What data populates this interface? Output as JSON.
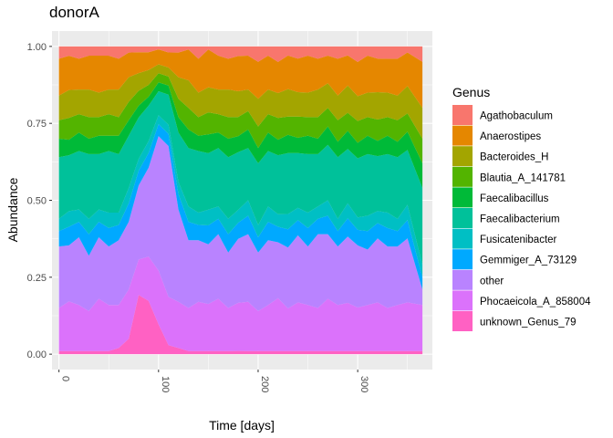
{
  "chart_data": {
    "type": "area",
    "title": "donorA",
    "xlabel": "Time [days]",
    "ylabel": "Abundance",
    "xlim": [
      0,
      365
    ],
    "ylim": [
      0,
      1
    ],
    "x_ticks": [
      "0",
      "100",
      "200",
      "300"
    ],
    "y_ticks": [
      "0.00",
      "0.25",
      "0.50",
      "0.75",
      "1.00"
    ],
    "grid": true,
    "legend": {
      "title": "Genus",
      "position": "right"
    },
    "x": [
      0,
      10,
      20,
      30,
      40,
      50,
      60,
      70,
      80,
      90,
      100,
      110,
      120,
      130,
      140,
      150,
      160,
      170,
      180,
      190,
      200,
      210,
      220,
      230,
      240,
      250,
      260,
      270,
      280,
      290,
      300,
      310,
      320,
      330,
      340,
      350,
      365
    ],
    "series": [
      {
        "name": "unknown_Genus_79",
        "color": "#FF61C3",
        "values": [
          0.01,
          0.01,
          0.01,
          0.01,
          0.01,
          0.01,
          0.02,
          0.05,
          0.2,
          0.18,
          0.1,
          0.03,
          0.02,
          0.01,
          0.01,
          0.01,
          0.01,
          0.01,
          0.01,
          0.01,
          0.01,
          0.01,
          0.01,
          0.01,
          0.01,
          0.01,
          0.01,
          0.01,
          0.01,
          0.01,
          0.01,
          0.01,
          0.01,
          0.01,
          0.01,
          0.01,
          0.01
        ]
      },
      {
        "name": "Phocaeicola_A_858004",
        "color": "#DB72FB",
        "values": [
          0.14,
          0.16,
          0.15,
          0.13,
          0.17,
          0.15,
          0.14,
          0.16,
          0.12,
          0.15,
          0.18,
          0.16,
          0.15,
          0.14,
          0.16,
          0.15,
          0.17,
          0.14,
          0.15,
          0.16,
          0.13,
          0.15,
          0.17,
          0.14,
          0.16,
          0.15,
          0.14,
          0.17,
          0.15,
          0.16,
          0.14,
          0.15,
          0.16,
          0.14,
          0.15,
          0.16,
          0.15
        ]
      },
      {
        "name": "other",
        "color": "#B983FF",
        "values": [
          0.2,
          0.18,
          0.22,
          0.18,
          0.2,
          0.19,
          0.21,
          0.22,
          0.25,
          0.3,
          0.45,
          0.5,
          0.3,
          0.22,
          0.2,
          0.19,
          0.21,
          0.18,
          0.2,
          0.22,
          0.19,
          0.21,
          0.18,
          0.2,
          0.22,
          0.19,
          0.24,
          0.21,
          0.19,
          0.22,
          0.2,
          0.18,
          0.21,
          0.2,
          0.19,
          0.21,
          0.05
        ]
      },
      {
        "name": "Gemmiger_A_73129",
        "color": "#00A9FF",
        "values": [
          0.05,
          0.06,
          0.05,
          0.07,
          0.05,
          0.06,
          0.05,
          0.06,
          0.05,
          0.05,
          0.04,
          0.04,
          0.05,
          0.06,
          0.05,
          0.06,
          0.05,
          0.06,
          0.05,
          0.06,
          0.05,
          0.06,
          0.05,
          0.06,
          0.05,
          0.06,
          0.05,
          0.06,
          0.05,
          0.06,
          0.05,
          0.06,
          0.05,
          0.06,
          0.05,
          0.06,
          0.04
        ]
      },
      {
        "name": "Fusicatenibacter",
        "color": "#00BFC4",
        "values": [
          0.04,
          0.05,
          0.04,
          0.05,
          0.04,
          0.05,
          0.04,
          0.05,
          0.04,
          0.04,
          0.03,
          0.03,
          0.04,
          0.05,
          0.04,
          0.05,
          0.04,
          0.05,
          0.04,
          0.05,
          0.04,
          0.05,
          0.04,
          0.05,
          0.04,
          0.05,
          0.04,
          0.05,
          0.04,
          0.05,
          0.04,
          0.05,
          0.04,
          0.05,
          0.04,
          0.05,
          0.04
        ]
      },
      {
        "name": "Faecalibacterium",
        "color": "#00C19A",
        "values": [
          0.2,
          0.18,
          0.19,
          0.21,
          0.18,
          0.2,
          0.19,
          0.17,
          0.14,
          0.12,
          0.08,
          0.1,
          0.16,
          0.19,
          0.2,
          0.18,
          0.19,
          0.2,
          0.18,
          0.17,
          0.2,
          0.18,
          0.19,
          0.2,
          0.18,
          0.19,
          0.17,
          0.18,
          0.2,
          0.18,
          0.19,
          0.2,
          0.18,
          0.19,
          0.2,
          0.18,
          0.25
        ]
      },
      {
        "name": "Faecalibacillus",
        "color": "#00BA38",
        "values": [
          0.06,
          0.05,
          0.06,
          0.05,
          0.06,
          0.05,
          0.06,
          0.05,
          0.04,
          0.03,
          0.03,
          0.03,
          0.05,
          0.06,
          0.05,
          0.06,
          0.05,
          0.06,
          0.05,
          0.06,
          0.05,
          0.06,
          0.05,
          0.06,
          0.05,
          0.06,
          0.05,
          0.06,
          0.05,
          0.06,
          0.05,
          0.06,
          0.05,
          0.06,
          0.05,
          0.06,
          0.08
        ]
      },
      {
        "name": "Blautia_A_141781",
        "color": "#53B400",
        "values": [
          0.06,
          0.07,
          0.06,
          0.07,
          0.06,
          0.07,
          0.06,
          0.06,
          0.05,
          0.04,
          0.03,
          0.03,
          0.06,
          0.07,
          0.06,
          0.07,
          0.06,
          0.07,
          0.06,
          0.06,
          0.07,
          0.06,
          0.07,
          0.06,
          0.07,
          0.06,
          0.07,
          0.06,
          0.07,
          0.06,
          0.07,
          0.06,
          0.07,
          0.06,
          0.07,
          0.06,
          0.08
        ]
      },
      {
        "name": "Bacteroides_H",
        "color": "#A3A500",
        "values": [
          0.08,
          0.09,
          0.08,
          0.09,
          0.08,
          0.08,
          0.09,
          0.08,
          0.06,
          0.05,
          0.03,
          0.03,
          0.07,
          0.09,
          0.08,
          0.08,
          0.08,
          0.09,
          0.08,
          0.07,
          0.09,
          0.08,
          0.08,
          0.09,
          0.08,
          0.08,
          0.09,
          0.08,
          0.08,
          0.09,
          0.08,
          0.08,
          0.09,
          0.08,
          0.08,
          0.09,
          0.1
        ]
      },
      {
        "name": "Anaerostipes",
        "color": "#E58700",
        "values": [
          0.12,
          0.11,
          0.1,
          0.11,
          0.12,
          0.11,
          0.1,
          0.08,
          0.07,
          0.06,
          0.05,
          0.05,
          0.08,
          0.1,
          0.11,
          0.12,
          0.11,
          0.1,
          0.11,
          0.11,
          0.12,
          0.11,
          0.1,
          0.11,
          0.11,
          0.12,
          0.1,
          0.09,
          0.12,
          0.1,
          0.11,
          0.12,
          0.11,
          0.11,
          0.12,
          0.11,
          0.15
        ]
      },
      {
        "name": "Agathobaculum",
        "color": "#F8766D",
        "values": [
          0.04,
          0.03,
          0.04,
          0.03,
          0.03,
          0.03,
          0.04,
          0.02,
          0.02,
          0.02,
          0.01,
          0.02,
          0.02,
          0.01,
          0.04,
          0.01,
          0.03,
          0.04,
          0.03,
          0.03,
          0.05,
          0.03,
          0.05,
          0.03,
          0.04,
          0.03,
          0.04,
          0.03,
          0.04,
          0.03,
          0.05,
          0.03,
          0.04,
          0.04,
          0.04,
          0.02,
          0.05
        ]
      }
    ]
  }
}
